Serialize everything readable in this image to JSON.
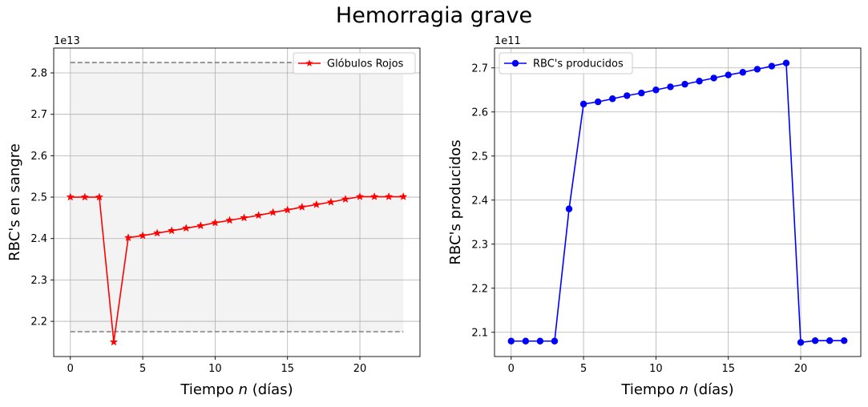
{
  "figure": {
    "title": "Hemorragia grave"
  },
  "chart_data": [
    {
      "type": "line",
      "title": "",
      "xlabel": "Tiempo n (días)",
      "xlabel_parts": [
        "Tiempo ",
        "n",
        " (días)"
      ],
      "ylabel": "RBC's en sangre",
      "offset_text": "1e13",
      "xlim": [
        -1.15,
        24.15
      ],
      "ylim": [
        2.115,
        2.86
      ],
      "xticks": [
        0,
        5,
        10,
        15,
        20
      ],
      "yticks": [
        2.2,
        2.3,
        2.4,
        2.5,
        2.6,
        2.7,
        2.8
      ],
      "grid": true,
      "legend_position": "top-right",
      "band": {
        "x": [
          0,
          23
        ],
        "y": [
          2.175,
          2.825
        ],
        "color": "#f3f3f3",
        "line_color": "#808080"
      },
      "series": [
        {
          "name": "Glóbulos Rojos",
          "color": "#ff0000",
          "marker": "star",
          "x": [
            0,
            1,
            2,
            3,
            4,
            5,
            6,
            7,
            8,
            9,
            10,
            11,
            12,
            13,
            14,
            15,
            16,
            17,
            18,
            19,
            20,
            21,
            22,
            23
          ],
          "y": [
            2.5,
            2.5,
            2.5,
            2.15,
            2.402,
            2.407,
            2.413,
            2.419,
            2.425,
            2.431,
            2.438,
            2.444,
            2.45,
            2.456,
            2.463,
            2.469,
            2.476,
            2.482,
            2.488,
            2.495,
            2.501,
            2.501,
            2.501,
            2.501
          ]
        }
      ]
    },
    {
      "type": "line",
      "title": "",
      "xlabel": "Tiempo n (días)",
      "xlabel_parts": [
        "Tiempo ",
        "n",
        " (días)"
      ],
      "ylabel": "RBC's producidos",
      "offset_text": "1e11",
      "xlim": [
        -1.15,
        24.15
      ],
      "ylim": [
        2.045,
        2.745
      ],
      "xticks": [
        0,
        5,
        10,
        15,
        20
      ],
      "yticks": [
        2.1,
        2.2,
        2.3,
        2.4,
        2.5,
        2.6,
        2.7
      ],
      "grid": true,
      "legend_position": "top-left",
      "series": [
        {
          "name": "RBC's producidos",
          "color": "#0000ff",
          "marker": "circle",
          "x": [
            0,
            1,
            2,
            3,
            4,
            5,
            6,
            7,
            8,
            9,
            10,
            11,
            12,
            13,
            14,
            15,
            16,
            17,
            18,
            19,
            20,
            21,
            22,
            23
          ],
          "y": [
            2.08,
            2.08,
            2.08,
            2.08,
            2.38,
            2.618,
            2.623,
            2.63,
            2.637,
            2.643,
            2.65,
            2.657,
            2.663,
            2.67,
            2.677,
            2.684,
            2.69,
            2.697,
            2.704,
            2.711,
            2.077,
            2.081,
            2.081,
            2.081
          ]
        }
      ]
    }
  ]
}
